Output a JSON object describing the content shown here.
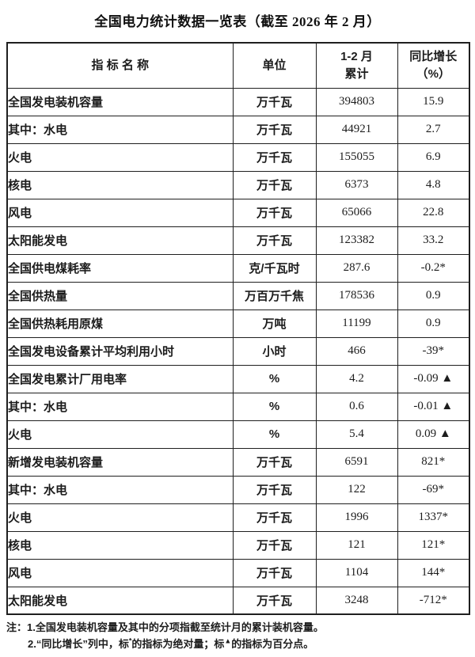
{
  "title": "全国电力统计数据一览表（截至 2026 年 2 月）",
  "table": {
    "headers": {
      "indicator": "指  标  名  称",
      "unit": "单位",
      "cumulative_line1": "1-2 月",
      "cumulative_line2": "累计",
      "yoy_line1": "同比增长",
      "yoy_line2": "（%）"
    },
    "rows": [
      {
        "indicator": "全国发电装机容量",
        "unit": "万千瓦",
        "value": "394803",
        "yoy": "15.9",
        "indent": 0
      },
      {
        "indicator": "其中：水电",
        "unit": "万千瓦",
        "value": "44921",
        "yoy": "2.7",
        "indent": 1
      },
      {
        "indicator": "火电",
        "unit": "万千瓦",
        "value": "155055",
        "yoy": "6.9",
        "indent": 2
      },
      {
        "indicator": "核电",
        "unit": "万千瓦",
        "value": "6373",
        "yoy": "4.8",
        "indent": 2
      },
      {
        "indicator": "风电",
        "unit": "万千瓦",
        "value": "65066",
        "yoy": "22.8",
        "indent": 2
      },
      {
        "indicator": "太阳能发电",
        "unit": "万千瓦",
        "value": "123382",
        "yoy": "33.2",
        "indent": 2
      },
      {
        "indicator": "全国供电煤耗率",
        "unit": "克/千瓦时",
        "value": "287.6",
        "yoy": "-0.2*",
        "indent": 0
      },
      {
        "indicator": "全国供热量",
        "unit": "万百万千焦",
        "value": "178536",
        "yoy": "0.9",
        "indent": 0
      },
      {
        "indicator": "全国供热耗用原煤",
        "unit": "万吨",
        "value": "11199",
        "yoy": "0.9",
        "indent": 0
      },
      {
        "indicator": "全国发电设备累计平均利用小时",
        "unit": "小时",
        "value": "466",
        "yoy": "-39*",
        "indent": 0
      },
      {
        "indicator": "全国发电累计厂用电率",
        "unit": "%",
        "value": "4.2",
        "yoy": "-0.09 ▲",
        "indent": 0
      },
      {
        "indicator": "其中：水电",
        "unit": "%",
        "value": "0.6",
        "yoy": "-0.01 ▲",
        "indent": 1
      },
      {
        "indicator": "火电",
        "unit": "%",
        "value": "5.4",
        "yoy": "0.09 ▲",
        "indent": 2
      },
      {
        "indicator": "新增发电装机容量",
        "unit": "万千瓦",
        "value": "6591",
        "yoy": "821*",
        "indent": 0
      },
      {
        "indicator": "其中：水电",
        "unit": "万千瓦",
        "value": "122",
        "yoy": "-69*",
        "indent": 1
      },
      {
        "indicator": "火电",
        "unit": "万千瓦",
        "value": "1996",
        "yoy": "1337*",
        "indent": 2
      },
      {
        "indicator": "核电",
        "unit": "万千瓦",
        "value": "121",
        "yoy": "121*",
        "indent": 2
      },
      {
        "indicator": "风电",
        "unit": "万千瓦",
        "value": "1104",
        "yoy": "144*",
        "indent": 2
      },
      {
        "indicator": "太阳能发电",
        "unit": "万千瓦",
        "value": "3248",
        "yoy": "-712*",
        "indent": 2
      }
    ]
  },
  "notes": {
    "prefix": "注：",
    "line1": "1.全国发电装机容量及其中的分项指截至统计月的累计装机容量。",
    "line2": {
      "p1": "2.“同比增长”列中，标",
      "sup1": "*",
      "p2": "的指标为绝对量；标",
      "sup2": "▲",
      "p3": "的指标为百分点。"
    }
  }
}
